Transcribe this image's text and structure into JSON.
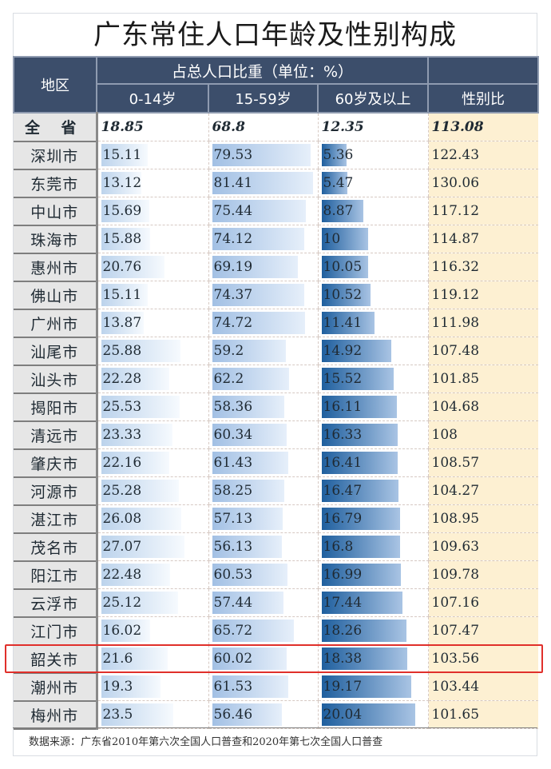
{
  "title": "广东常住人口年龄及性别构成",
  "header": {
    "region": "地区",
    "group": "占总人口比重（单位：%）",
    "age_0_14": "0-14岁",
    "age_15_59": "15-59岁",
    "age_60_plus": "60岁及以上",
    "sex_ratio": "性别比"
  },
  "total": {
    "region": "全 省",
    "age_0_14": "18.85",
    "age_15_59": "68.8",
    "age_60_plus": "12.35",
    "sex_ratio": "113.08"
  },
  "rows": [
    {
      "region": "深圳市",
      "age_0_14": "15.11",
      "age_15_59": "79.53",
      "age_60_plus": "5.36",
      "sex_ratio": "122.43"
    },
    {
      "region": "东莞市",
      "age_0_14": "13.12",
      "age_15_59": "81.41",
      "age_60_plus": "5.47",
      "sex_ratio": "130.06"
    },
    {
      "region": "中山市",
      "age_0_14": "15.69",
      "age_15_59": "75.44",
      "age_60_plus": "8.87",
      "sex_ratio": "117.12"
    },
    {
      "region": "珠海市",
      "age_0_14": "15.88",
      "age_15_59": "74.12",
      "age_60_plus": "10",
      "sex_ratio": "114.87"
    },
    {
      "region": "惠州市",
      "age_0_14": "20.76",
      "age_15_59": "69.19",
      "age_60_plus": "10.05",
      "sex_ratio": "116.32"
    },
    {
      "region": "佛山市",
      "age_0_14": "15.11",
      "age_15_59": "74.37",
      "age_60_plus": "10.52",
      "sex_ratio": "119.12"
    },
    {
      "region": "广州市",
      "age_0_14": "13.87",
      "age_15_59": "74.72",
      "age_60_plus": "11.41",
      "sex_ratio": "111.98"
    },
    {
      "region": "汕尾市",
      "age_0_14": "25.88",
      "age_15_59": "59.2",
      "age_60_plus": "14.92",
      "sex_ratio": "107.48"
    },
    {
      "region": "汕头市",
      "age_0_14": "22.28",
      "age_15_59": "62.2",
      "age_60_plus": "15.52",
      "sex_ratio": "101.85"
    },
    {
      "region": "揭阳市",
      "age_0_14": "25.53",
      "age_15_59": "58.36",
      "age_60_plus": "16.11",
      "sex_ratio": "104.68"
    },
    {
      "region": "清远市",
      "age_0_14": "23.33",
      "age_15_59": "60.34",
      "age_60_plus": "16.33",
      "sex_ratio": "108"
    },
    {
      "region": "肇庆市",
      "age_0_14": "22.16",
      "age_15_59": "61.43",
      "age_60_plus": "16.41",
      "sex_ratio": "108.57"
    },
    {
      "region": "河源市",
      "age_0_14": "25.28",
      "age_15_59": "58.25",
      "age_60_plus": "16.47",
      "sex_ratio": "104.27"
    },
    {
      "region": "湛江市",
      "age_0_14": "26.08",
      "age_15_59": "57.13",
      "age_60_plus": "16.79",
      "sex_ratio": "108.95"
    },
    {
      "region": "茂名市",
      "age_0_14": "27.07",
      "age_15_59": "56.13",
      "age_60_plus": "16.8",
      "sex_ratio": "109.63"
    },
    {
      "region": "阳江市",
      "age_0_14": "22.48",
      "age_15_59": "60.53",
      "age_60_plus": "16.99",
      "sex_ratio": "109.78"
    },
    {
      "region": "云浮市",
      "age_0_14": "25.12",
      "age_15_59": "57.44",
      "age_60_plus": "17.44",
      "sex_ratio": "107.16"
    },
    {
      "region": "江门市",
      "age_0_14": "16.02",
      "age_15_59": "65.72",
      "age_60_plus": "18.26",
      "sex_ratio": "107.47"
    },
    {
      "region": "韶关市",
      "age_0_14": "21.6",
      "age_15_59": "60.02",
      "age_60_plus": "18.38",
      "sex_ratio": "103.56"
    },
    {
      "region": "潮州市",
      "age_0_14": "19.3",
      "age_15_59": "61.53",
      "age_60_plus": "19.17",
      "sex_ratio": "103.44"
    },
    {
      "region": "梅州市",
      "age_0_14": "23.5",
      "age_15_59": "56.46",
      "age_60_plus": "20.04",
      "sex_ratio": "101.65"
    }
  ],
  "highlighted_region": "韶关市",
  "footer": "数据来源：广东省2010年第六次全国人口普查和2020年第七次全国人口普查",
  "colors": {
    "header_bg": "#3c4e6b",
    "region_bg": "#e6e6e6",
    "sex_ratio_bg": "#fdf0d2",
    "bar_0_14": "#bcd3ec",
    "bar_15_59": "#a2c0e4",
    "bar_60_plus": "#1f5f9e",
    "highlight": "#e0302b"
  },
  "chart_data": {
    "type": "table",
    "title": "广东常住人口年龄及性别构成",
    "columns": [
      "地区",
      "0-14岁",
      "15-59岁",
      "60岁及以上",
      "性别比"
    ],
    "column_group": "占总人口比重（单位：%）",
    "categories": [
      "全省",
      "深圳市",
      "东莞市",
      "中山市",
      "珠海市",
      "惠州市",
      "佛山市",
      "广州市",
      "汕尾市",
      "汕头市",
      "揭阳市",
      "清远市",
      "肇庆市",
      "河源市",
      "湛江市",
      "茂名市",
      "阳江市",
      "云浮市",
      "江门市",
      "韶关市",
      "潮州市",
      "梅州市"
    ],
    "series": [
      {
        "name": "0-14岁",
        "values": [
          18.85,
          15.11,
          13.12,
          15.69,
          15.88,
          20.76,
          15.11,
          13.87,
          25.88,
          22.28,
          25.53,
          23.33,
          22.16,
          25.28,
          26.08,
          27.07,
          22.48,
          25.12,
          16.02,
          21.6,
          19.3,
          23.5
        ]
      },
      {
        "name": "15-59岁",
        "values": [
          68.8,
          79.53,
          81.41,
          75.44,
          74.12,
          69.19,
          74.37,
          74.72,
          59.2,
          62.2,
          58.36,
          60.34,
          61.43,
          58.25,
          57.13,
          56.13,
          60.53,
          57.44,
          65.72,
          60.02,
          61.53,
          56.46
        ]
      },
      {
        "name": "60岁及以上",
        "values": [
          12.35,
          5.36,
          5.47,
          8.87,
          10,
          10.05,
          10.52,
          11.41,
          14.92,
          15.52,
          16.11,
          16.33,
          16.41,
          16.47,
          16.79,
          16.8,
          16.99,
          17.44,
          18.26,
          18.38,
          19.17,
          20.04
        ]
      },
      {
        "name": "性别比",
        "values": [
          113.08,
          122.43,
          130.06,
          117.12,
          114.87,
          116.32,
          119.12,
          111.98,
          107.48,
          101.85,
          104.68,
          108,
          108.57,
          104.27,
          108.95,
          109.63,
          109.78,
          107.16,
          107.47,
          103.56,
          103.44,
          101.65
        ]
      }
    ],
    "note": "数据来源：广东省2010年第六次全国人口普查和2020年第七次全国人口普查"
  }
}
